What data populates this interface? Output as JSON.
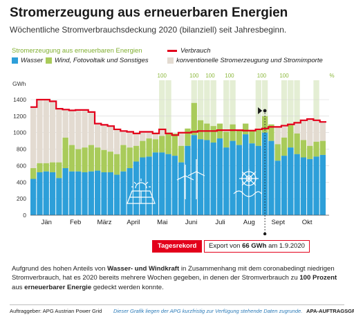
{
  "header": {
    "title": "Stromerzeugung aus erneuerbaren Energien",
    "subtitle": "Wöchentliche Stromverbrauchsdeckung 2020 (bilanziell) seit Jahresbeginn."
  },
  "legend": {
    "group_title": "Stromerzeugung aus erneuerbaren Energien",
    "wasser": "Wasser",
    "wind": "Wind, Fotovoltaik und Sonstiges",
    "verbrauch": "Verbrauch",
    "konventionell": "konventionelle Stromerzeugung und Stromimporte"
  },
  "colors": {
    "wasser": "#2d9fd9",
    "wind": "#a9cb5a",
    "konventionell": "#e3dbd1",
    "verbrauch": "#e3001b",
    "highlight": "#dbe8c5",
    "accent_green": "#8cb83c"
  },
  "chart_data": {
    "type": "bar",
    "title": "Stromerzeugung aus erneuerbaren Energien",
    "ylabel": "GWh",
    "ylim": [
      0,
      1400
    ],
    "yticks": [
      0,
      200,
      400,
      600,
      800,
      1000,
      1200,
      1400
    ],
    "month_labels": [
      "Jän",
      "Feb",
      "März",
      "April",
      "Mai",
      "Juni",
      "Juli",
      "Aug",
      "Sept",
      "Okt"
    ],
    "month_week_positions": [
      2.5,
      7,
      11.5,
      16,
      20.5,
      25,
      29.5,
      34,
      38.5,
      43
    ],
    "weeks": 46,
    "series": [
      {
        "name": "Wasser",
        "values": [
          440,
          520,
          530,
          520,
          450,
          570,
          530,
          530,
          520,
          530,
          540,
          520,
          520,
          490,
          530,
          570,
          650,
          700,
          710,
          760,
          760,
          740,
          720,
          640,
          840,
          970,
          920,
          910,
          880,
          930,
          820,
          900,
          850,
          980,
          870,
          840,
          1000,
          900,
          660,
          720,
          820,
          740,
          700,
          680,
          710,
          730
        ]
      },
      {
        "name": "Wind, Fotovoltaik und Sonstiges",
        "values": [
          130,
          110,
          100,
          120,
          190,
          370,
          320,
          270,
          300,
          320,
          280,
          270,
          250,
          250,
          320,
          250,
          190,
          200,
          220,
          160,
          200,
          260,
          270,
          200,
          210,
          390,
          230,
          200,
          200,
          180,
          190,
          200,
          180,
          130,
          160,
          190,
          200,
          200,
          200,
          220,
          270,
          250,
          210,
          160,
          180,
          170
        ]
      },
      {
        "name": "Verbrauch",
        "values": [
          1310,
          1400,
          1400,
          1380,
          1290,
          1280,
          1270,
          1275,
          1275,
          1250,
          1110,
          1095,
          1080,
          1040,
          1020,
          1010,
          990,
          1010,
          1010,
          990,
          1040,
          990,
          970,
          1000,
          1000,
          1010,
          1020,
          1020,
          1020,
          1030,
          1030,
          1030,
          1030,
          1025,
          1025,
          1040,
          1050,
          1070,
          1070,
          1085,
          1100,
          1120,
          1150,
          1165,
          1150,
          1130
        ]
      }
    ],
    "highlight_weeks": [
      20,
      21,
      25,
      26,
      27,
      28,
      30,
      31,
      35,
      36,
      39,
      40,
      41,
      44
    ],
    "highlight_labels": [
      {
        "text": "100",
        "week": 20
      },
      {
        "text": "100",
        "week": 25
      },
      {
        "text": "100",
        "week": 27.5
      },
      {
        "text": "100",
        "week": 30.5
      },
      {
        "text": "100",
        "week": 35.5
      },
      {
        "text": "100",
        "week": 39
      }
    ],
    "highlight_unit": "%",
    "record_week": 36,
    "record": {
      "badge": "Tagesrekord",
      "text_prefix": "Export von ",
      "text_value": "66 GWh",
      "text_suffix": " am 1.9.2020"
    },
    "icons": [
      "solar-icon",
      "wind-turbine-icon",
      "hydro-turbine-icon"
    ]
  },
  "body": {
    "p1": "Aufgrund des hohen Anteils von ",
    "b1": "Wasser- und Windkraft",
    "p2": " in Zusammenhang mit dem coronabedingt niedrigen Stromverbrauch, hat es 2020 bereits mehrere Wochen gegeben, in denen der Stromverbrauch zu ",
    "b2": "100 Prozent",
    "p3": " aus ",
    "b3": "erneuerbarer Energie",
    "p4": " gedeckt werden konnte."
  },
  "footer": {
    "client": "Auftraggeber: APG Austrian Power Grid",
    "note": "Dieser Grafik liegen der APG kurzfristig zur Verfügung stehende Daten zugrunde.",
    "tag": "APA-AUFTRAGSGRAFIK"
  }
}
